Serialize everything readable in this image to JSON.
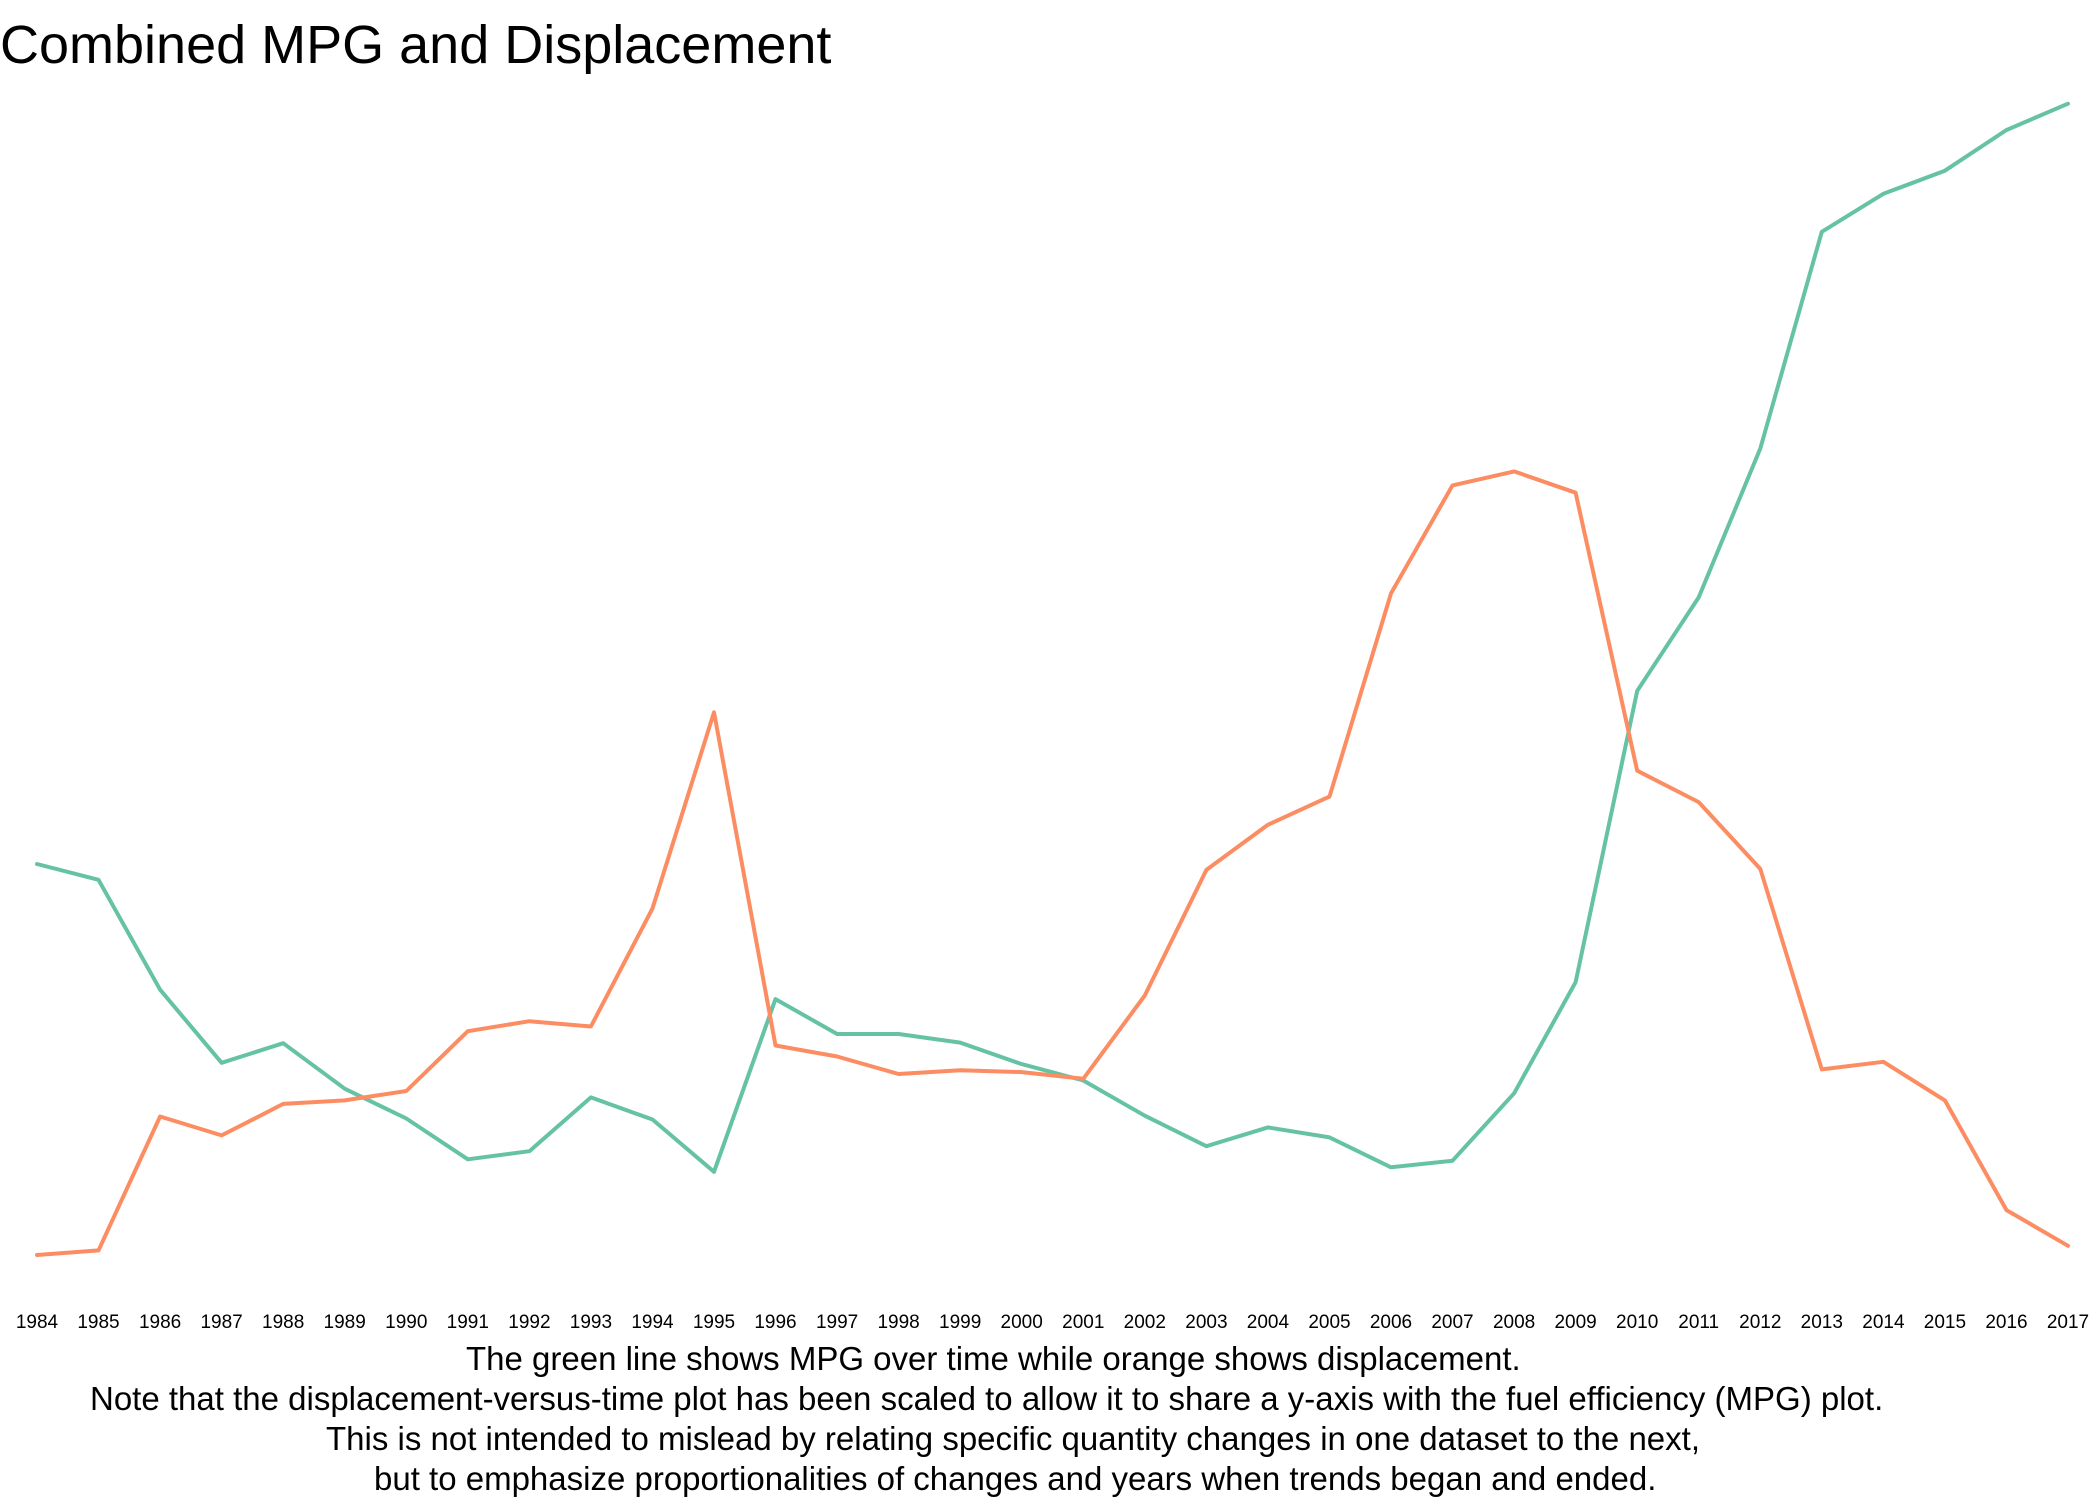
{
  "chart_data": {
    "type": "line",
    "title": "Combined MPG and Displacement",
    "xlabel": "",
    "ylabel": "",
    "grid": false,
    "legend": "none",
    "x": [
      "1984",
      "1985",
      "1986",
      "1987",
      "1988",
      "1989",
      "1990",
      "1991",
      "1992",
      "1993",
      "1994",
      "1995",
      "1996",
      "1997",
      "1998",
      "1999",
      "2000",
      "2001",
      "2002",
      "2003",
      "2004",
      "2005",
      "2006",
      "2007",
      "2008",
      "2009",
      "2010",
      "2011",
      "2012",
      "2013",
      "2014",
      "2015",
      "2016",
      "2017"
    ],
    "series": [
      {
        "color": "#66c2a5",
        "values": [
          0.3476,
          0.3335,
          0.2358,
          0.1708,
          0.1883,
          0.1478,
          0.1213,
          0.0851,
          0.0923,
          0.1401,
          0.1204,
          0.074,
          0.2275,
          0.1964,
          0.1964,
          0.1888,
          0.1697,
          0.1551,
          0.1238,
          0.0967,
          0.1134,
          0.1045,
          0.078,
          0.0838,
          0.1437,
          0.2425,
          0.5014,
          0.5845,
          0.7169,
          0.9095,
          0.9433,
          0.9638,
          1.0,
          1.0234
        ]
      },
      {
        "color": "#fc8d62",
        "values": [
          0.0,
          0.0041,
          0.1231,
          0.1063,
          0.1343,
          0.1374,
          0.1458,
          0.1989,
          0.2078,
          0.2031,
          0.3081,
          0.4824,
          0.1862,
          0.1764,
          0.1609,
          0.1643,
          0.1626,
          0.1566,
          0.2307,
          0.3423,
          0.3824,
          0.4075,
          0.5881,
          0.6841,
          0.6965,
          0.6776,
          0.4305,
          0.4026,
          0.3432,
          0.165,
          0.1717,
          0.1374,
          0.0399,
          0.0082
        ]
      }
    ]
  },
  "caption": {
    "line1": "The green line shows MPG over time while orange shows displacement.",
    "line2": "Note that the displacement-versus-time plot has been scaled to allow it to share a y-axis with the fuel efficiency (MPG) plot.",
    "line3": "This is not intended to mislead by relating specific quantity changes in one dataset to the next,",
    "line4": "but to emphasize proportionalities of changes and years when trends began and ended."
  }
}
